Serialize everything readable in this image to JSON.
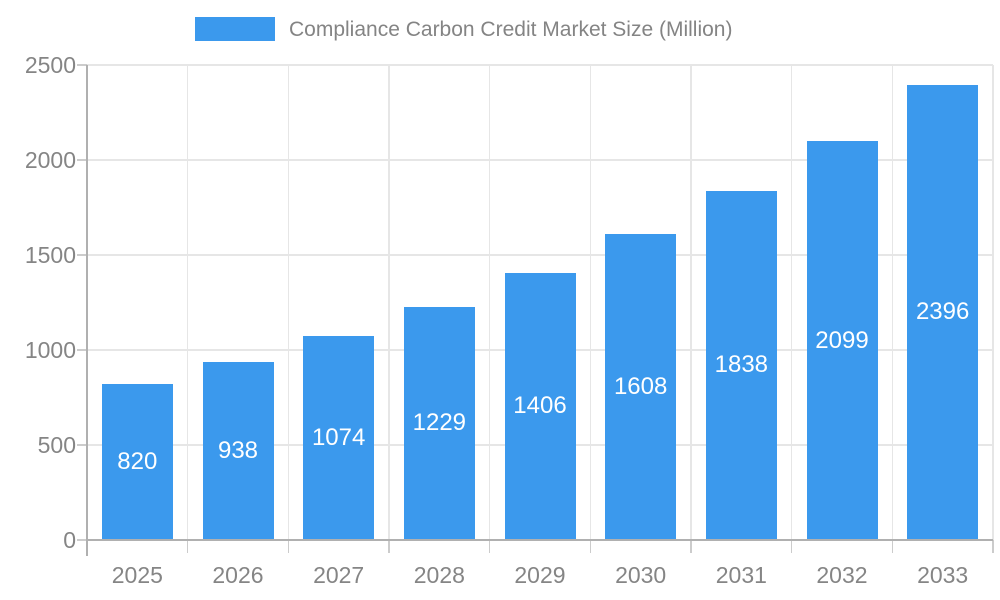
{
  "page": {
    "background": "#ffffff"
  },
  "legend": {
    "label": "Compliance Carbon Credit Market Size (Million)"
  },
  "chart_data": {
    "type": "bar",
    "title": "Compliance Carbon Credit Market Size (Million)",
    "categories": [
      "2025",
      "2026",
      "2027",
      "2028",
      "2029",
      "2030",
      "2031",
      "2032",
      "2033"
    ],
    "values": [
      820,
      938,
      1074,
      1229,
      1406,
      1608,
      1838,
      2099,
      2396
    ],
    "bar_labels": [
      "820",
      "938",
      "1074",
      "1229",
      "1406",
      "1608",
      "1838",
      "2099",
      "2396"
    ],
    "xlabel": "",
    "ylabel": "",
    "ylim": [
      0,
      2500
    ],
    "yticks": [
      0,
      500,
      1000,
      1500,
      2000,
      2500
    ],
    "ytick_labels": [
      "0",
      "500",
      "1000",
      "1500",
      "2000",
      "2500"
    ],
    "grid": true,
    "legend_position": "top",
    "colors": {
      "bar": "#3b99ed",
      "bar_value_label": "#ffffff",
      "axis_line": "#b0b0b0",
      "gridline": "#e6e6e6",
      "tick_mark": "#cccccc",
      "tick_label": "#858585",
      "legend_text": "#848484"
    }
  }
}
